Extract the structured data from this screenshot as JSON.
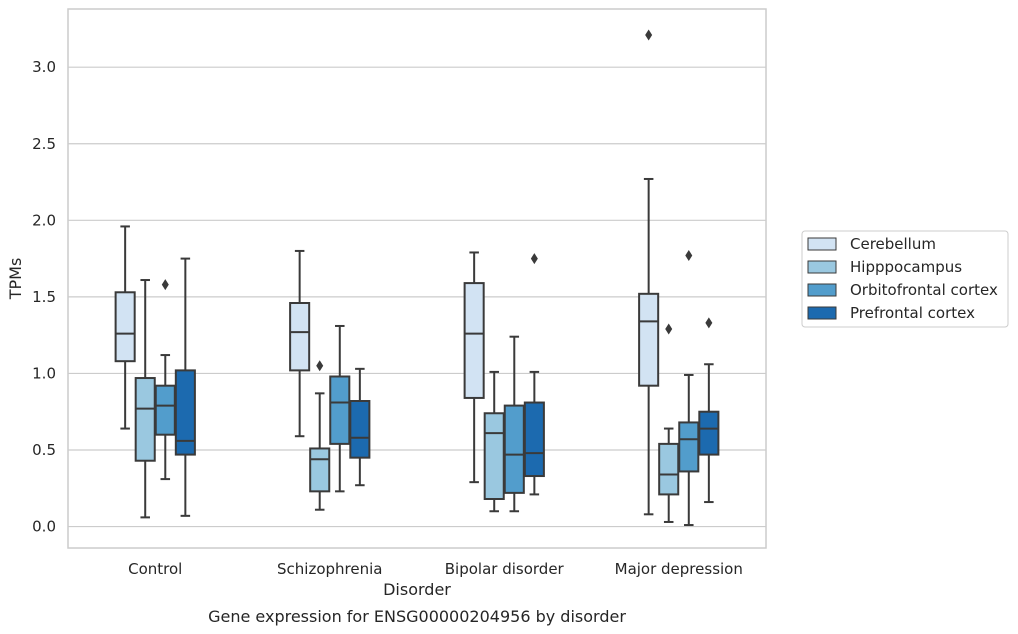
{
  "chart_data": {
    "type": "box",
    "caption": "Gene expression for ENSG00000204956 by disorder",
    "xlabel": "Disorder",
    "ylabel": "TPMs",
    "ylim": [
      -0.14,
      3.38
    ],
    "yticks": [
      0.0,
      0.5,
      1.0,
      1.5,
      2.0,
      2.5,
      3.0
    ],
    "ytick_labels": [
      "0.0",
      "0.5",
      "1.0",
      "1.5",
      "2.0",
      "2.5",
      "3.0"
    ],
    "grid": "horizontal",
    "legend_position": "right",
    "categories": [
      "Control",
      "Schizophrenia",
      "Bipolar disorder",
      "Major depression"
    ],
    "series": [
      {
        "name": "Cerebellum",
        "color": "#d2e3f3",
        "boxes": [
          {
            "whisker_low": 0.64,
            "q1": 1.08,
            "median": 1.26,
            "q3": 1.53,
            "whisker_high": 1.96,
            "outliers": []
          },
          {
            "whisker_low": 0.59,
            "q1": 1.02,
            "median": 1.27,
            "q3": 1.46,
            "whisker_high": 1.8,
            "outliers": []
          },
          {
            "whisker_low": 0.29,
            "q1": 0.84,
            "median": 1.26,
            "q3": 1.59,
            "whisker_high": 1.79,
            "outliers": []
          },
          {
            "whisker_low": 0.08,
            "q1": 0.92,
            "median": 1.34,
            "q3": 1.52,
            "whisker_high": 2.27,
            "outliers": [
              3.21
            ]
          }
        ]
      },
      {
        "name": "Hipppocampus",
        "color": "#9ac8e0",
        "boxes": [
          {
            "whisker_low": 0.06,
            "q1": 0.43,
            "median": 0.77,
            "q3": 0.97,
            "whisker_high": 1.61,
            "outliers": []
          },
          {
            "whisker_low": 0.11,
            "q1": 0.23,
            "median": 0.44,
            "q3": 0.51,
            "whisker_high": 0.87,
            "outliers": [
              1.05
            ]
          },
          {
            "whisker_low": 0.1,
            "q1": 0.18,
            "median": 0.61,
            "q3": 0.74,
            "whisker_high": 1.01,
            "outliers": []
          },
          {
            "whisker_low": 0.03,
            "q1": 0.21,
            "median": 0.34,
            "q3": 0.54,
            "whisker_high": 0.64,
            "outliers": [
              1.29
            ]
          }
        ]
      },
      {
        "name": "Orbitofrontal cortex",
        "color": "#529dcc",
        "boxes": [
          {
            "whisker_low": 0.31,
            "q1": 0.6,
            "median": 0.79,
            "q3": 0.92,
            "whisker_high": 1.12,
            "outliers": [
              1.58
            ]
          },
          {
            "whisker_low": 0.23,
            "q1": 0.54,
            "median": 0.81,
            "q3": 0.98,
            "whisker_high": 1.31,
            "outliers": []
          },
          {
            "whisker_low": 0.1,
            "q1": 0.22,
            "median": 0.47,
            "q3": 0.79,
            "whisker_high": 1.24,
            "outliers": []
          },
          {
            "whisker_low": 0.01,
            "q1": 0.36,
            "median": 0.57,
            "q3": 0.68,
            "whisker_high": 0.99,
            "outliers": [
              1.77
            ]
          }
        ]
      },
      {
        "name": "Prefrontal cortex",
        "color": "#1c6aaf",
        "boxes": [
          {
            "whisker_low": 0.07,
            "q1": 0.47,
            "median": 0.56,
            "q3": 1.02,
            "whisker_high": 1.75,
            "outliers": []
          },
          {
            "whisker_low": 0.27,
            "q1": 0.45,
            "median": 0.58,
            "q3": 0.82,
            "whisker_high": 1.03,
            "outliers": []
          },
          {
            "whisker_low": 0.21,
            "q1": 0.33,
            "median": 0.48,
            "q3": 0.81,
            "whisker_high": 1.01,
            "outliers": [
              1.75
            ]
          },
          {
            "whisker_low": 0.16,
            "q1": 0.47,
            "median": 0.64,
            "q3": 0.75,
            "whisker_high": 1.06,
            "outliers": [
              1.33
            ]
          }
        ]
      }
    ]
  }
}
